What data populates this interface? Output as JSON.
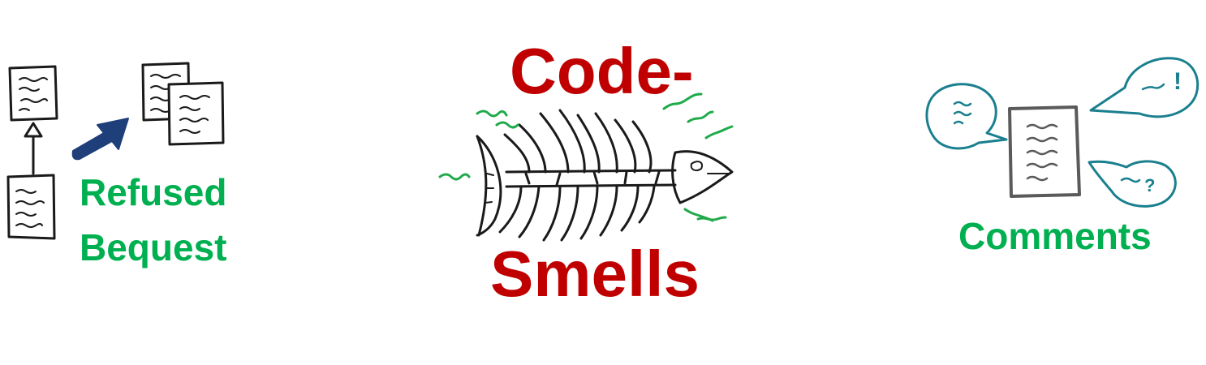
{
  "title": {
    "line1": "Code-",
    "line2": "Smells"
  },
  "refused_bequest": {
    "line1": "Refused",
    "line2": "Bequest"
  },
  "comments": {
    "label": "Comments"
  },
  "colors": {
    "title": "#c00000",
    "labels": "#00b050",
    "arrow": "#1f3f7a",
    "bubbles": "#1a7f8e",
    "stink_lines": "#1faa4a"
  },
  "icons": [
    "class-hierarchy-icon",
    "inheritance-arrow-icon",
    "duplicate-documents-icon",
    "fish-skeleton-icon",
    "document-icon",
    "speech-bubble-icon",
    "exclamation-bubble-icon",
    "question-bubble-icon"
  ]
}
